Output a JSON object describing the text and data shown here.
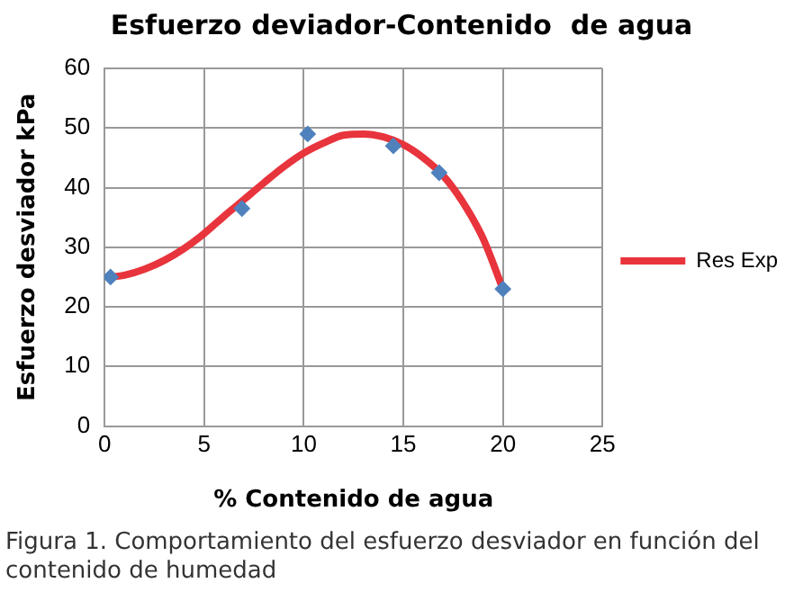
{
  "chart_data": {
    "type": "scatter",
    "title": "Esfuerzo deviador-Contenido  de agua",
    "xlabel": "% Contenido de agua",
    "ylabel": "Esfuerzo desviador kPa",
    "series": [
      {
        "color": "#4f81bd",
        "marker": "diamond",
        "x": [
          0.3,
          6.9,
          10.2,
          14.5,
          16.8,
          20
        ],
        "values": [
          25,
          36.5,
          49,
          47,
          42.5,
          23
        ]
      },
      {
        "type": "line",
        "name": "Res Exp",
        "color": "#e8343c",
        "marker": "none",
        "x": [
          0.3,
          1,
          2,
          3,
          4,
          5,
          6,
          7,
          8,
          9,
          10,
          11,
          12,
          13,
          14,
          15,
          16,
          17,
          18,
          19,
          20
        ],
        "values": [
          25,
          25.3,
          26.3,
          27.8,
          29.8,
          32.3,
          35.2,
          38,
          40.8,
          43.5,
          45.8,
          47.5,
          48.8,
          49,
          48.5,
          47.2,
          45,
          42,
          37.5,
          31.5,
          23
        ]
      }
    ],
    "xlim": [
      0,
      25
    ],
    "xticks": [
      0,
      5,
      10,
      15,
      20,
      25
    ],
    "ylim": [
      0,
      60
    ],
    "yticks": [
      0,
      10,
      20,
      30,
      40,
      50,
      60
    ],
    "grid": true,
    "legend": "right",
    "annotations": [
      "Figura 1. Comportamiento del esfuerzo desviador en función del contenido de humedad"
    ]
  }
}
